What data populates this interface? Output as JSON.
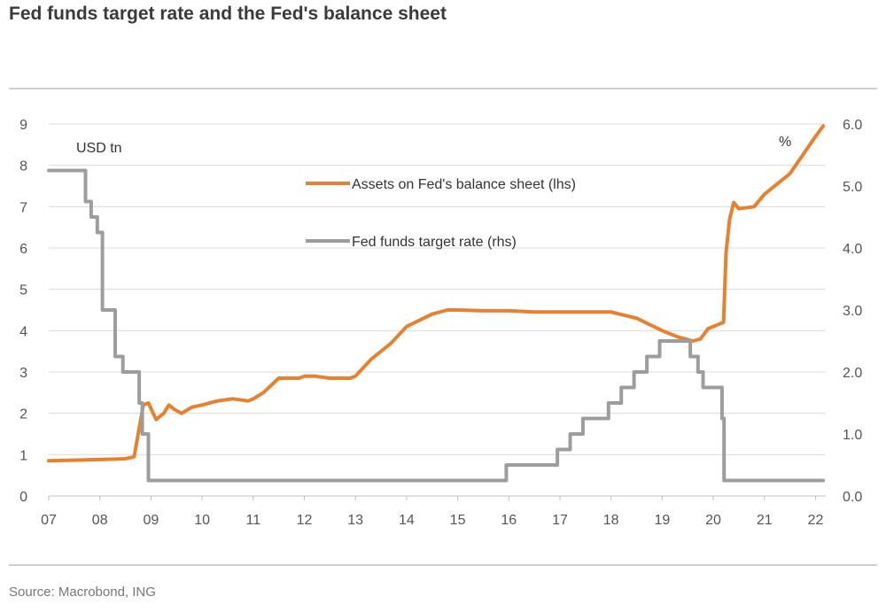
{
  "title": "Fed funds target rate and the Fed's balance sheet",
  "source": "Source: Macrobond, ING",
  "chart_data": {
    "type": "line",
    "title": "Fed funds target rate and the Fed's balance sheet",
    "x_ticks": [
      "07",
      "08",
      "09",
      "10",
      "11",
      "12",
      "13",
      "14",
      "15",
      "16",
      "17",
      "18",
      "19",
      "20",
      "21",
      "22"
    ],
    "xlim": [
      2007,
      2022.2
    ],
    "y_left": {
      "label": "USD tn",
      "ticks": [
        "0",
        "1",
        "2",
        "3",
        "4",
        "5",
        "6",
        "7",
        "8",
        "9"
      ],
      "lim": [
        0,
        9
      ]
    },
    "y_right": {
      "label": "%",
      "ticks": [
        "0.0",
        "1.0",
        "2.0",
        "3.0",
        "4.0",
        "5.0",
        "6.0"
      ],
      "lim": [
        0,
        6
      ]
    },
    "grid": "horizontal",
    "series": [
      {
        "name": "Assets on Fed's balance sheet (lhs)",
        "axis": "left",
        "color": "#e8812f",
        "x": [
          2007.0,
          2008.0,
          2008.5,
          2008.67,
          2008.75,
          2008.85,
          2008.95,
          2009.1,
          2009.25,
          2009.35,
          2009.45,
          2009.6,
          2009.8,
          2010.0,
          2010.3,
          2010.6,
          2010.9,
          2011.0,
          2011.2,
          2011.5,
          2011.9,
          2012.0,
          2012.2,
          2012.5,
          2012.9,
          2013.0,
          2013.3,
          2013.7,
          2014.0,
          2014.5,
          2014.8,
          2015.0,
          2015.5,
          2016.0,
          2016.5,
          2017.0,
          2017.5,
          2018.0,
          2018.5,
          2019.0,
          2019.3,
          2019.6,
          2019.75,
          2019.9,
          2020.1,
          2020.2,
          2020.25,
          2020.32,
          2020.4,
          2020.5,
          2020.8,
          2021.0,
          2021.5,
          2022.0,
          2022.15
        ],
        "y": [
          0.85,
          0.88,
          0.9,
          0.95,
          1.5,
          2.2,
          2.25,
          1.85,
          2.0,
          2.2,
          2.1,
          2.0,
          2.15,
          2.2,
          2.3,
          2.35,
          2.3,
          2.35,
          2.5,
          2.85,
          2.85,
          2.9,
          2.9,
          2.85,
          2.85,
          2.9,
          3.3,
          3.7,
          4.1,
          4.4,
          4.5,
          4.5,
          4.48,
          4.48,
          4.45,
          4.45,
          4.45,
          4.45,
          4.3,
          4.0,
          3.85,
          3.75,
          3.8,
          4.05,
          4.15,
          4.2,
          5.9,
          6.7,
          7.1,
          6.95,
          7.0,
          7.3,
          7.8,
          8.7,
          8.95
        ]
      },
      {
        "name": "Fed funds target rate (rhs)",
        "axis": "right",
        "color": "#9d9d9d",
        "x": [
          2007.0,
          2007.72,
          2007.72,
          2007.83,
          2007.83,
          2007.95,
          2007.95,
          2008.05,
          2008.05,
          2008.08,
          2008.08,
          2008.3,
          2008.3,
          2008.45,
          2008.45,
          2008.77,
          2008.77,
          2008.83,
          2008.83,
          2008.95,
          2008.95,
          2015.95,
          2015.95,
          2016.95,
          2016.95,
          2017.2,
          2017.2,
          2017.45,
          2017.45,
          2017.95,
          2017.95,
          2018.2,
          2018.2,
          2018.45,
          2018.45,
          2018.7,
          2018.7,
          2018.95,
          2018.95,
          2019.55,
          2019.55,
          2019.7,
          2019.7,
          2019.8,
          2019.8,
          2020.17,
          2020.17,
          2020.21,
          2020.21,
          2022.15
        ],
        "y": [
          5.25,
          5.25,
          4.75,
          4.75,
          4.5,
          4.5,
          4.25,
          4.25,
          3.0,
          3.0,
          3.0,
          3.0,
          2.25,
          2.25,
          2.0,
          2.0,
          1.5,
          1.5,
          1.0,
          1.0,
          0.25,
          0.25,
          0.5,
          0.5,
          0.75,
          0.75,
          1.0,
          1.0,
          1.25,
          1.25,
          1.5,
          1.5,
          1.75,
          1.75,
          2.0,
          2.0,
          2.25,
          2.25,
          2.5,
          2.5,
          2.25,
          2.25,
          2.0,
          2.0,
          1.75,
          1.75,
          1.25,
          1.25,
          0.25,
          0.25
        ]
      }
    ]
  }
}
